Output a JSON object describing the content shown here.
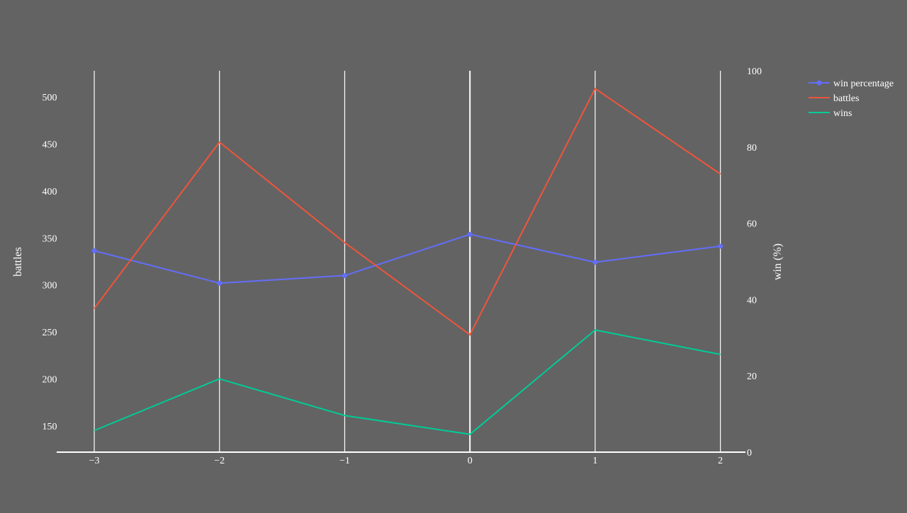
{
  "chart_data": {
    "type": "line",
    "x": [
      -3,
      -2,
      -1,
      0,
      1,
      2
    ],
    "x_tick_labels": [
      "−3",
      "−2",
      "−1",
      "0",
      "1",
      "2"
    ],
    "xlim": [
      -3.3,
      2.2
    ],
    "y_left": {
      "label": "battles",
      "range": [
        122,
        528
      ],
      "ticks": [
        150,
        200,
        250,
        300,
        350,
        400,
        450,
        500
      ],
      "tick_labels": [
        "150",
        "200",
        "250",
        "300",
        "350",
        "400",
        "450",
        "500"
      ]
    },
    "y_right": {
      "label": "win (%)",
      "range": [
        0,
        100
      ],
      "ticks": [
        0,
        20,
        40,
        60,
        80,
        100
      ],
      "tick_labels": [
        "0",
        "20",
        "40",
        "60",
        "80",
        "100"
      ]
    },
    "series": [
      {
        "name": "win percentage",
        "axis": "right",
        "color": "#636efa",
        "markers": true,
        "values": [
          52.8,
          44.3,
          46.3,
          57.1,
          49.8,
          54.0
        ]
      },
      {
        "name": "battles",
        "axis": "left",
        "color": "#ef553b",
        "markers": false,
        "values": [
          275,
          452,
          345,
          247,
          509,
          418
        ]
      },
      {
        "name": "wins",
        "axis": "left",
        "color": "#00cc96",
        "markers": false,
        "values": [
          145,
          200,
          161,
          141,
          252,
          226
        ]
      }
    ],
    "grid": {
      "x": true,
      "y": false
    },
    "legend_position": "top-right"
  }
}
